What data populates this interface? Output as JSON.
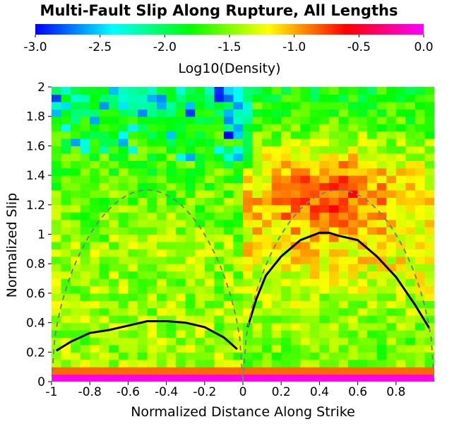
{
  "chart_data": {
    "type": "heatmap",
    "title": "Multi-Fault Slip Along Rupture, All Lengths",
    "xlabel": "Normalized Distance Along Strike",
    "ylabel": "Normalized Slip",
    "xlim": [
      -1,
      1
    ],
    "ylim": [
      0,
      2
    ],
    "x_ticks": [
      "-1",
      "-0.8",
      "-0.6",
      "-0.4",
      "-0.2",
      "0",
      "0.2",
      "0.4",
      "0.6",
      "0.8"
    ],
    "y_ticks": [
      "0",
      "0.2",
      "0.4",
      "0.6",
      "0.8",
      "1",
      "1.2",
      "1.4",
      "1.6",
      "1.8",
      "2"
    ],
    "colorbar": {
      "label": "Log10(Density)",
      "range": [
        -3.0,
        0.0
      ],
      "ticks": [
        "-3.0",
        "-2.5",
        "-2.0",
        "-1.5",
        "-1.0",
        "-0.5",
        "0.0"
      ],
      "colors": [
        "#0000ff",
        "#00ffff",
        "#00ff00",
        "#ffff00",
        "#ff0000",
        "#ff00ff"
      ]
    },
    "grid": {
      "nx": 40,
      "ny": 40,
      "cell_dx": 0.05,
      "cell_dy": 0.05
    },
    "density_pattern": "log10 density from about -3.0 (blue, upper-left area and near x=0 at high slip) to 0.0 (magenta, slip near 0); highest away from zero along slip 0-0.05 band; orange band right of 0 near slip 1.1-1.5",
    "series": [
      {
        "name": "mean slip (left fault)",
        "style": "solid",
        "color": "#000000",
        "x": [
          -0.975,
          -0.9,
          -0.8,
          -0.7,
          -0.6,
          -0.5,
          -0.4,
          -0.3,
          -0.2,
          -0.1,
          -0.03
        ],
        "y": [
          0.21,
          0.27,
          0.33,
          0.35,
          0.38,
          0.41,
          0.41,
          0.4,
          0.37,
          0.3,
          0.22
        ]
      },
      {
        "name": "mean slip (right fault)",
        "style": "solid",
        "color": "#000000",
        "x": [
          0.025,
          0.07,
          0.12,
          0.2,
          0.3,
          0.4,
          0.45,
          0.5,
          0.6,
          0.7,
          0.8,
          0.9,
          0.975
        ],
        "y": [
          0.37,
          0.56,
          0.72,
          0.85,
          0.96,
          1.01,
          1.01,
          0.99,
          0.96,
          0.85,
          0.71,
          0.52,
          0.36
        ]
      },
      {
        "name": "reference sqrt-sine (left)",
        "style": "dashed",
        "color": "#7f7f7f",
        "amplitude": 1.3,
        "x_range": [
          -1,
          0
        ]
      },
      {
        "name": "reference sqrt-sine (right)",
        "style": "dashed",
        "color": "#7f7f7f",
        "amplitude": 1.3,
        "x_range": [
          0,
          1
        ]
      }
    ]
  }
}
